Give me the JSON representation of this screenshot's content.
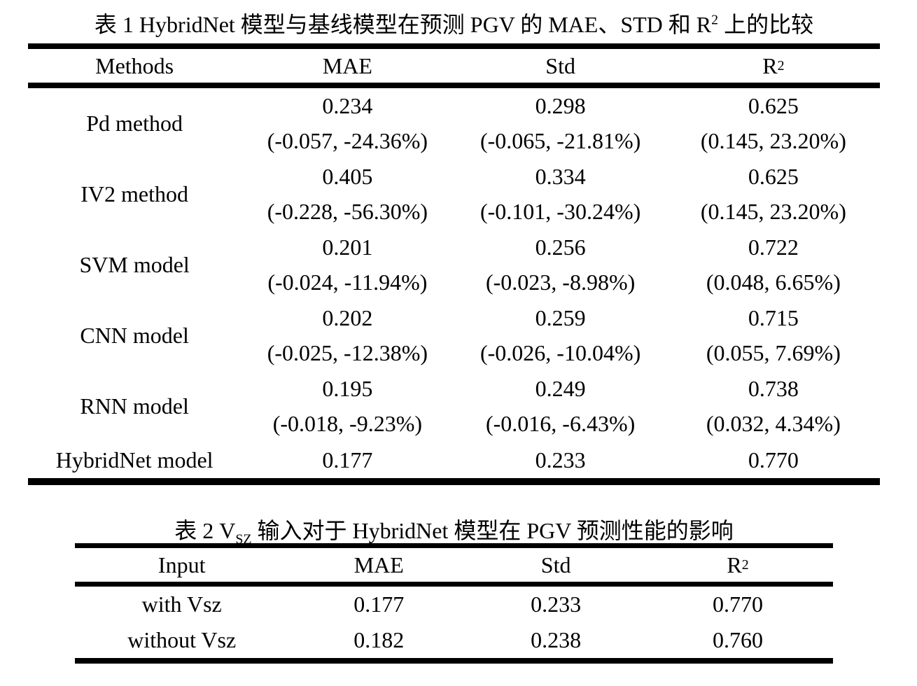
{
  "table1": {
    "caption_prefix": "表 1 HybridNet 模型与基线模型在预测 PGV 的 MAE、STD 和 R",
    "caption_sup": "2",
    "caption_suffix": " 上的比较",
    "headers": {
      "col1": "Methods",
      "col2": "MAE",
      "col3": "Std",
      "col4_base": "R",
      "col4_sup": "2"
    },
    "rows": [
      {
        "method": "Pd method",
        "mae": {
          "value": "0.234",
          "delta": "(-0.057, -24.36%)"
        },
        "std": {
          "value": "0.298",
          "delta": "(-0.065, -21.81%)"
        },
        "r2": {
          "value": "0.625",
          "delta": "(0.145, 23.20%)"
        }
      },
      {
        "method": "IV2 method",
        "mae": {
          "value": "0.405",
          "delta": "(-0.228, -56.30%)"
        },
        "std": {
          "value": "0.334",
          "delta": "(-0.101, -30.24%)"
        },
        "r2": {
          "value": "0.625",
          "delta": "(0.145, 23.20%)"
        }
      },
      {
        "method": "SVM model",
        "mae": {
          "value": "0.201",
          "delta": "(-0.024, -11.94%)"
        },
        "std": {
          "value": "0.256",
          "delta": "(-0.023, -8.98%)"
        },
        "r2": {
          "value": "0.722",
          "delta": "(0.048, 6.65%)"
        }
      },
      {
        "method": "CNN model",
        "mae": {
          "value": "0.202",
          "delta": "(-0.025, -12.38%)"
        },
        "std": {
          "value": "0.259",
          "delta": "(-0.026, -10.04%)"
        },
        "r2": {
          "value": "0.715",
          "delta": "(0.055, 7.69%)"
        }
      },
      {
        "method": "RNN model",
        "mae": {
          "value": "0.195",
          "delta": "(-0.018, -9.23%)"
        },
        "std": {
          "value": "0.249",
          "delta": "(-0.016, -6.43%)"
        },
        "r2": {
          "value": "0.738",
          "delta": "(0.032, 4.34%)"
        }
      },
      {
        "method": "HybridNet model",
        "mae": {
          "value": "0.177"
        },
        "std": {
          "value": "0.233"
        },
        "r2": {
          "value": "0.770"
        }
      }
    ]
  },
  "table2": {
    "caption_prefix": "表 2 V",
    "caption_sub": "SZ",
    "caption_suffix": " 输入对于 HybridNet 模型在 PGV 预测性能的影响",
    "headers": {
      "col1": "Input",
      "col2": "MAE",
      "col3": "Std",
      "col4_base": "R",
      "col4_sup": "2"
    },
    "rows": [
      {
        "input": "with Vsz",
        "mae": "0.177",
        "std": "0.233",
        "r2": "0.770"
      },
      {
        "input": "without Vsz",
        "mae": "0.182",
        "std": "0.238",
        "r2": "0.760"
      }
    ]
  },
  "chart_data": [
    {
      "type": "table",
      "title": "表 1 HybridNet 模型与基线模型在预测 PGV 的 MAE、STD 和 R2 上的比较",
      "columns": [
        "Methods",
        "MAE",
        "Std",
        "R2"
      ],
      "rows": [
        [
          "Pd method",
          "0.234 (-0.057, -24.36%)",
          "0.298 (-0.065, -21.81%)",
          "0.625 (0.145, 23.20%)"
        ],
        [
          "IV2 method",
          "0.405 (-0.228, -56.30%)",
          "0.334 (-0.101, -30.24%)",
          "0.625 (0.145, 23.20%)"
        ],
        [
          "SVM model",
          "0.201 (-0.024, -11.94%)",
          "0.256 (-0.023, -8.98%)",
          "0.722 (0.048, 6.65%)"
        ],
        [
          "CNN model",
          "0.202 (-0.025, -12.38%)",
          "0.259 (-0.026, -10.04%)",
          "0.715 (0.055, 7.69%)"
        ],
        [
          "RNN model",
          "0.195 (-0.018, -9.23%)",
          "0.249 (-0.016, -6.43%)",
          "0.738 (0.032, 4.34%)"
        ],
        [
          "HybridNet model",
          "0.177",
          "0.233",
          "0.770"
        ]
      ]
    },
    {
      "type": "table",
      "title": "表 2 VSZ 输入对于 HybridNet 模型在 PGV 预测性能的影响",
      "columns": [
        "Input",
        "MAE",
        "Std",
        "R2"
      ],
      "rows": [
        [
          "with Vsz",
          "0.177",
          "0.233",
          "0.770"
        ],
        [
          "without Vsz",
          "0.182",
          "0.238",
          "0.760"
        ]
      ]
    }
  ]
}
